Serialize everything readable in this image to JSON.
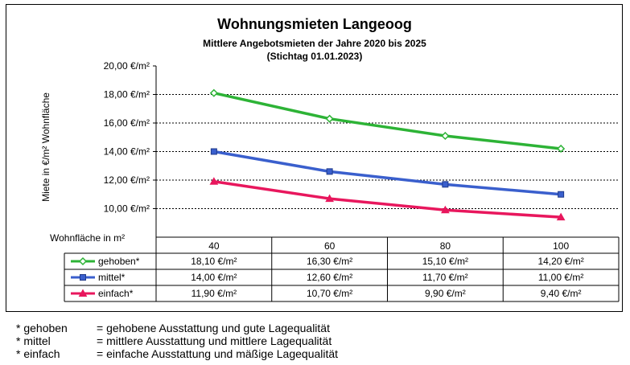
{
  "chart_data": {
    "type": "line",
    "title": "Wohnungsmieten Langeoog",
    "subtitle_line1": "Mittlere Angebotsmieten  der Jahre 2020 bis 2025",
    "subtitle_line2": "(Stichtag 01.01.2023)",
    "ylabel": "Miete in €/m²  Wohnfläche",
    "xlabel": "Wohnfläche in m²",
    "categories": [
      "40",
      "60",
      "80",
      "100"
    ],
    "y_ticks": [
      "10,00 €/m²",
      "12,00 €/m²",
      "14,00 €/m²",
      "16,00 €/m²",
      "18,00 €/m²",
      "20,00 €/m²"
    ],
    "y_tick_values": [
      10,
      12,
      14,
      16,
      18,
      20
    ],
    "ylim": [
      9,
      20
    ],
    "grid": true,
    "legend": "table-below",
    "series": [
      {
        "name": "gehoben*",
        "values": [
          18.1,
          16.3,
          15.1,
          14.2
        ],
        "labels": [
          "18,10 €/m²",
          "16,30 €/m²",
          "15,10 €/m²",
          "14,20 €/m²"
        ],
        "color": "#2db336",
        "marker": "diamond"
      },
      {
        "name": "mittel*",
        "values": [
          14.0,
          12.6,
          11.7,
          11.0
        ],
        "labels": [
          "14,00 €/m²",
          "12,60 €/m²",
          "11,70 €/m²",
          "11,00 €/m²"
        ],
        "color": "#3a5fcd",
        "marker": "square"
      },
      {
        "name": "einfach*",
        "values": [
          11.9,
          10.7,
          9.9,
          9.4
        ],
        "labels": [
          "11,90 €/m²",
          "10,70 €/m²",
          "9,90 €/m²",
          "9,40 €/m²"
        ],
        "color": "#e8175d",
        "marker": "triangle"
      }
    ]
  },
  "footnotes": [
    {
      "key": "* gehoben",
      "text": "= gehobene Ausstattung und gute Lagequalität"
    },
    {
      "key": "* mittel",
      "text": "= mittlere Ausstattung und mittlere Lagequalität"
    },
    {
      "key": "* einfach",
      "text": "= einfache Ausstattung und mäßige Lagequalität"
    }
  ]
}
